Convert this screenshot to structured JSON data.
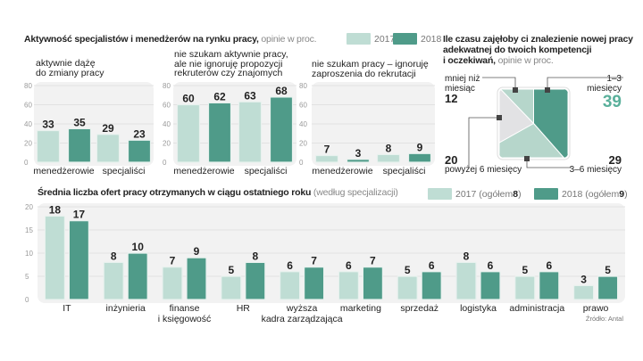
{
  "colors": {
    "y2017": "#bfddd4",
    "y2018": "#4f9b89",
    "pie_light_gray": "#e2e2e4",
    "pie_mid": "#b6d6cb",
    "pie_dark": "#4f9b89",
    "highlight": "#5ab09b",
    "plot_bg": "#f2f2f2",
    "grid": "#e2e2e2",
    "axis_text": "#999999"
  },
  "top": {
    "title_bold": "Aktywność specjalistów i menedżerów na rynku pracy,",
    "title_light": " opinie w proc.",
    "legend": [
      "2017",
      "2018"
    ]
  },
  "pie_section": {
    "title_line1": "Ile czasu zajęłoby ci znalezienie nowej pracy",
    "title_line2": "adekwatnej do twoich kompetencji",
    "title_line3_bold": "i oczekiwań,",
    "title_line3_light": " opinie w proc."
  },
  "bottom": {
    "title_bold": "Średnia liczba ofert pracy otrzymanych w ciągu ostatniego roku",
    "title_light": " (według specjalizacji)",
    "legend": [
      {
        "prefix": "2017 (ogółem ",
        "bold": "8",
        "suffix": ")"
      },
      {
        "prefix": "2018 (ogółem ",
        "bold": "9",
        "suffix": ")"
      }
    ],
    "source": "Źródło: Antal"
  },
  "chart_data": [
    {
      "type": "bar",
      "title": "aktywnie dążę do zmiany pracy",
      "title_lines": [
        "aktywnie dążę",
        "do zmiany pracy"
      ],
      "categories": [
        "menedżerowie",
        "specjaliści"
      ],
      "series": [
        {
          "name": "2017",
          "values": [
            33,
            29
          ]
        },
        {
          "name": "2018",
          "values": [
            35,
            23
          ]
        }
      ],
      "yticks": [
        "0",
        "20",
        "40",
        "60",
        "80"
      ],
      "ylim": [
        0,
        80
      ],
      "grid": true
    },
    {
      "type": "bar",
      "title": "nie szukam aktywnie pracy, ale nie ignoruję propozycji rekruterów czy znajomych",
      "title_lines": [
        "nie szukam aktywnie pracy,",
        "ale nie ignoruję propozycji",
        "rekruterów czy znajomych"
      ],
      "categories": [
        "menedżerowie",
        "specjaliści"
      ],
      "series": [
        {
          "name": "2017",
          "values": [
            60,
            63
          ]
        },
        {
          "name": "2018",
          "values": [
            62,
            68
          ]
        }
      ],
      "yticks": [
        "0",
        "20",
        "40",
        "60",
        "80"
      ],
      "ylim": [
        0,
        80
      ],
      "grid": true
    },
    {
      "type": "bar",
      "title": "nie szukam pracy – ignoruję zaproszenia do rekrutacji",
      "title_lines": [
        "nie szukam pracy – ignoruję",
        "zaproszenia do rekrutacji"
      ],
      "categories": [
        "menedżerowie",
        "specjaliści"
      ],
      "series": [
        {
          "name": "2017",
          "values": [
            7,
            8
          ]
        },
        {
          "name": "2018",
          "values": [
            3,
            9
          ]
        }
      ],
      "yticks": [
        "0",
        "20",
        "40",
        "60",
        "80"
      ],
      "ylim": [
        0,
        80
      ],
      "grid": true
    },
    {
      "type": "pie",
      "title": "Ile czasu zajęłoby ci znalezienie nowej pracy adekwatnej do twoich kompetencji i oczekiwań, opinie w proc.",
      "slices": [
        {
          "label": "mniej niż miesiąc",
          "label_lines": [
            "mniej niż",
            "miesiąc"
          ],
          "value": 12
        },
        {
          "label": "1–3 miesięcy",
          "label_lines": [
            "1–3",
            "miesięcy"
          ],
          "value": 39
        },
        {
          "label": "3–6 miesięcy",
          "label_lines": [
            "3–6 miesięcy"
          ],
          "value": 29
        },
        {
          "label": "powyżej 6 miesięcy",
          "label_lines": [
            "powyżej 6 miesięcy"
          ],
          "value": 20
        }
      ]
    },
    {
      "type": "bar",
      "title": "Średnia liczba ofert pracy otrzymanych w ciągu ostatniego roku (według specjalizacji)",
      "categories": [
        "IT",
        "inżynieria",
        "finanse i księgowość",
        "HR",
        "wyższa kadra zarządzająca",
        "marketing",
        "sprzedaż",
        "logistyka",
        "administracja",
        "prawo"
      ],
      "category_lines": [
        [
          "IT"
        ],
        [
          "inżynieria"
        ],
        [
          "finanse",
          "i księgowość"
        ],
        [
          "HR"
        ],
        [
          "wyższa",
          "kadra zarządzająca"
        ],
        [
          "marketing"
        ],
        [
          "sprzedaż"
        ],
        [
          "logistyka"
        ],
        [
          "administracja"
        ],
        [
          "prawo"
        ]
      ],
      "series": [
        {
          "name": "2017 (ogółem 8)",
          "values": [
            18,
            8,
            7,
            5,
            6,
            6,
            5,
            8,
            5,
            3
          ]
        },
        {
          "name": "2018 (ogółem 9)",
          "values": [
            17,
            10,
            9,
            8,
            7,
            7,
            6,
            6,
            6,
            5
          ]
        }
      ],
      "yticks": [
        "0",
        "5",
        "10",
        "15",
        "20"
      ],
      "ylim": [
        0,
        20
      ],
      "grid": true,
      "legend": "top-right"
    }
  ]
}
